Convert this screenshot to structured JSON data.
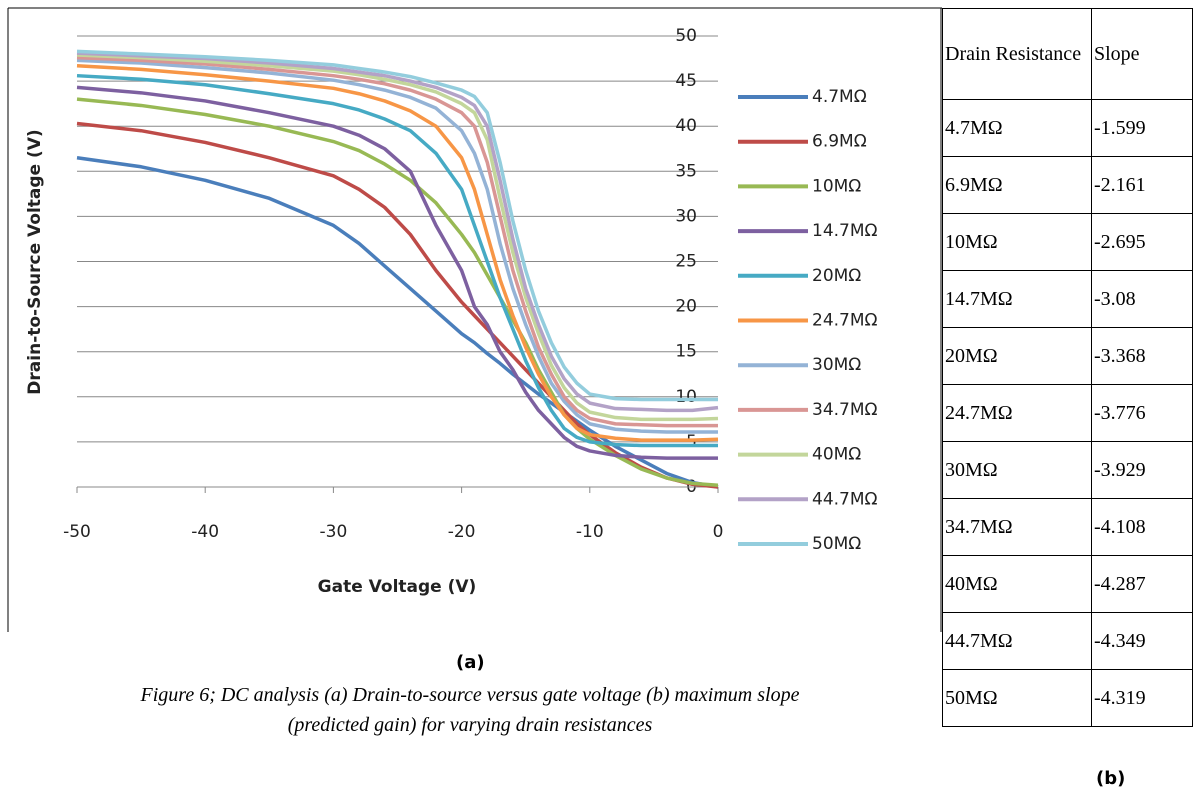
{
  "chart_data": {
    "type": "line",
    "x_label": "Gate Voltage (V)",
    "y_label": "Drain-to-Source Voltage (V)",
    "x": [
      -50,
      -45,
      -40,
      -35,
      -30,
      -28,
      -26,
      -24,
      -22,
      -20,
      -19,
      -18,
      -17,
      -16,
      -15,
      -14,
      -13,
      -12,
      -11,
      -10,
      -8,
      -6,
      -4,
      -2,
      0
    ],
    "xlim": [
      -50,
      0
    ],
    "xticks": [
      -50,
      -40,
      -30,
      -20,
      -10,
      0
    ],
    "ylim": [
      0,
      50
    ],
    "yticks": [
      0,
      5,
      10,
      15,
      20,
      25,
      30,
      35,
      40,
      45,
      50
    ],
    "grid": true,
    "legend": "right",
    "series": [
      {
        "name": "4.7MΩ",
        "color": "#4a7ebb",
        "values": [
          36.5,
          35.5,
          34,
          32,
          29,
          27,
          24.5,
          22,
          19.5,
          17,
          16,
          14.8,
          13.7,
          12.5,
          11.4,
          10.3,
          9.3,
          8.3,
          7.3,
          6.3,
          4.5,
          3,
          1.5,
          0.5,
          0
        ]
      },
      {
        "name": "6.9MΩ",
        "color": "#be4b48",
        "values": [
          40.3,
          39.5,
          38.2,
          36.5,
          34.5,
          33,
          31,
          28,
          24,
          20.5,
          19,
          17.5,
          16,
          14.5,
          13,
          11.5,
          10,
          8.5,
          7,
          5.8,
          3.8,
          2.2,
          1,
          0.3,
          0
        ]
      },
      {
        "name": "10MΩ",
        "color": "#98b954",
        "values": [
          43,
          42.3,
          41.3,
          40,
          38.3,
          37.3,
          35.8,
          34,
          31.5,
          28,
          26,
          23.5,
          21,
          18.5,
          16,
          13,
          10.5,
          8,
          6.5,
          5.3,
          3.5,
          2,
          1,
          0.4,
          0.2
        ]
      },
      {
        "name": "14.7MΩ",
        "color": "#7d60a0",
        "values": [
          44.3,
          43.7,
          42.8,
          41.5,
          40,
          39,
          37.5,
          35,
          29,
          24,
          20,
          18,
          15,
          13,
          10.5,
          8.5,
          7,
          5.5,
          4.5,
          4,
          3.5,
          3.3,
          3.2,
          3.2,
          3.2
        ]
      },
      {
        "name": "20MΩ",
        "color": "#46aac4",
        "values": [
          45.6,
          45.2,
          44.6,
          43.6,
          42.5,
          41.8,
          40.8,
          39.5,
          37,
          33,
          29,
          25,
          21,
          17.5,
          14,
          11,
          8.5,
          6.5,
          5.5,
          5,
          4.7,
          4.6,
          4.6,
          4.6,
          4.6
        ]
      },
      {
        "name": "24.7MΩ",
        "color": "#f79646",
        "values": [
          46.7,
          46.3,
          45.7,
          45,
          44.2,
          43.6,
          42.8,
          41.7,
          40,
          36.5,
          33,
          28,
          23,
          19,
          15.5,
          12.5,
          10,
          8,
          6.5,
          5.8,
          5.4,
          5.2,
          5.2,
          5.2,
          5.3
        ]
      },
      {
        "name": "30MΩ",
        "color": "#94b3d6",
        "values": [
          47.3,
          47,
          46.5,
          45.9,
          45.1,
          44.6,
          44,
          43.2,
          42,
          39.5,
          37,
          33,
          27,
          22,
          18,
          14.5,
          11.5,
          9.5,
          8,
          7,
          6.4,
          6.2,
          6.1,
          6.1,
          6.1
        ]
      },
      {
        "name": "34.7MΩ",
        "color": "#d99694",
        "values": [
          47.6,
          47.3,
          46.9,
          46.3,
          45.6,
          45.2,
          44.7,
          44,
          43,
          41.5,
          40,
          36,
          30,
          24,
          19.5,
          15.5,
          12.5,
          10,
          8.5,
          7.6,
          7,
          6.9,
          6.8,
          6.8,
          6.8
        ]
      },
      {
        "name": "40MΩ",
        "color": "#c3d69b",
        "values": [
          47.9,
          47.6,
          47.2,
          46.7,
          46.1,
          45.7,
          45.2,
          44.6,
          43.8,
          42.5,
          41.5,
          38.5,
          32,
          26,
          21,
          17,
          13.5,
          11,
          9.3,
          8.3,
          7.7,
          7.5,
          7.5,
          7.5,
          7.6
        ]
      },
      {
        "name": "44.7MΩ",
        "color": "#b3a2c7",
        "values": [
          48.1,
          47.8,
          47.5,
          47,
          46.4,
          46,
          45.6,
          45,
          44.3,
          43.2,
          42.3,
          40,
          34,
          27.5,
          22,
          18,
          14.5,
          12,
          10.3,
          9.3,
          8.7,
          8.6,
          8.5,
          8.5,
          8.8
        ]
      },
      {
        "name": "50MΩ",
        "color": "#93cddd",
        "values": [
          48.3,
          48,
          47.7,
          47.3,
          46.8,
          46.4,
          46,
          45.5,
          44.8,
          44,
          43.3,
          41.5,
          36,
          29.5,
          24,
          19.5,
          16,
          13.3,
          11.5,
          10.3,
          9.8,
          9.7,
          9.7,
          9.7,
          9.7
        ]
      }
    ]
  },
  "panel_a_label": "(a)",
  "panel_b_label": "(b)",
  "caption": "Figure 6; DC analysis (a) Drain-to-source versus gate voltage (b) maximum slope (predicted gain) for varying drain resistances",
  "table": {
    "header": [
      "Drain Resistance",
      "Slope"
    ],
    "rows": [
      [
        "4.7MΩ",
        "-1.599"
      ],
      [
        "6.9MΩ",
        "-2.161"
      ],
      [
        "10MΩ",
        "-2.695"
      ],
      [
        "14.7MΩ",
        "-3.08"
      ],
      [
        "20MΩ",
        "-3.368"
      ],
      [
        "24.7MΩ",
        "-3.776"
      ],
      [
        "30MΩ",
        "-3.929"
      ],
      [
        "34.7MΩ",
        "-4.108"
      ],
      [
        "40MΩ",
        "-4.287"
      ],
      [
        "44.7MΩ",
        "-4.349"
      ],
      [
        "50MΩ",
        "-4.319"
      ]
    ]
  }
}
